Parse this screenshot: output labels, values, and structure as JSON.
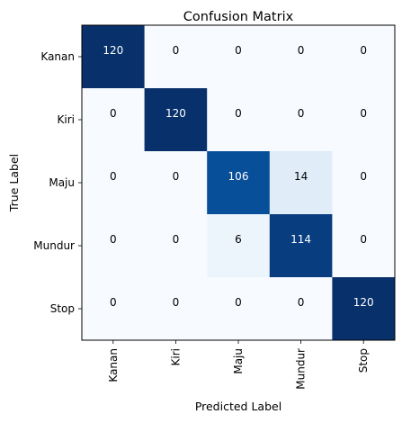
{
  "chart_data": {
    "type": "heatmap",
    "title": "Confusion Matrix",
    "xlabel": "Predicted Label",
    "ylabel": "True Label",
    "x_categories": [
      "Kanan",
      "Kiri",
      "Maju",
      "Mundur",
      "Stop"
    ],
    "y_categories": [
      "Kanan",
      "Kiri",
      "Maju",
      "Mundur",
      "Stop"
    ],
    "values": [
      [
        120,
        0,
        0,
        0,
        0
      ],
      [
        0,
        120,
        0,
        0,
        0
      ],
      [
        0,
        0,
        106,
        14,
        0
      ],
      [
        0,
        0,
        6,
        114,
        0
      ],
      [
        0,
        0,
        0,
        0,
        120
      ]
    ],
    "colormap": "Blues",
    "value_range": [
      0,
      120
    ],
    "text_color_light": "#ffffff",
    "text_color_dark": "#000000"
  }
}
